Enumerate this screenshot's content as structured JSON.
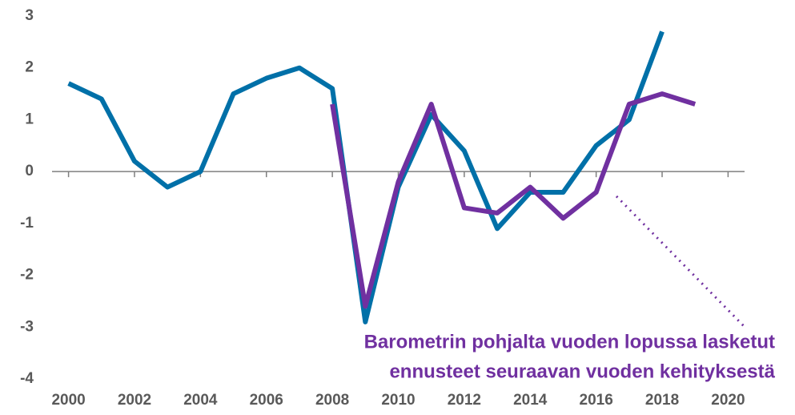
{
  "chart_data": {
    "type": "line",
    "x": [
      2000,
      2001,
      2002,
      2003,
      2004,
      2005,
      2006,
      2007,
      2008,
      2009,
      2010,
      2011,
      2012,
      2013,
      2014,
      2015,
      2016,
      2017,
      2018,
      2019
    ],
    "series": [
      {
        "color": "#0070a8",
        "values": [
          1.7,
          1.4,
          0.2,
          -0.3,
          0,
          1.5,
          1.8,
          2.0,
          1.6,
          -2.9,
          -0.3,
          1.1,
          0.4,
          -1.1,
          -0.4,
          -0.4,
          0.5,
          1.0,
          2.7,
          null
        ]
      },
      {
        "color": "#7030a0",
        "values": [
          null,
          null,
          null,
          null,
          null,
          null,
          null,
          null,
          1.3,
          -2.6,
          -0.2,
          1.3,
          -0.7,
          -0.8,
          -0.3,
          -0.9,
          -0.4,
          1.3,
          1.5,
          1.3
        ]
      }
    ],
    "xlim": [
      1999.5,
      2020.5
    ],
    "xticks": [
      2000,
      2002,
      2004,
      2006,
      2008,
      2010,
      2012,
      2014,
      2016,
      2018,
      2020
    ],
    "ylim": [
      -4,
      3
    ],
    "yticks": [
      -4,
      -3,
      -2,
      -1,
      0,
      1,
      2,
      3
    ],
    "annotation": [
      "Barometrin pohjalta vuoden lopussa lasketut",
      "ennusteet seuraavan vuoden kehityksestä"
    ]
  }
}
